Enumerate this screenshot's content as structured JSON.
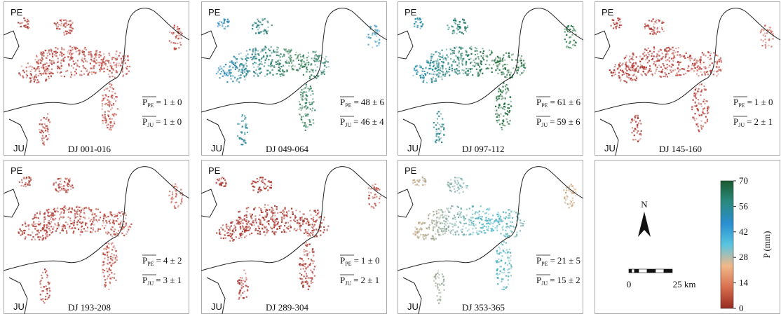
{
  "equals": "=",
  "panels": [
    {
      "period": "DJ 001-016",
      "regions": [
        "PE",
        "JU"
      ],
      "colors": [
        "#a8322a",
        "#c0524a",
        "#b84038"
      ],
      "stats": [
        {
          "symbol": "P",
          "sub": "PE",
          "value": "1 ± 0"
        },
        {
          "symbol": "P",
          "sub": "JU",
          "value": "1 ± 0"
        }
      ]
    },
    {
      "period": "DJ 049-064",
      "regions": [
        "PE",
        "JU"
      ],
      "colors": [
        "#2a8ed8",
        "#2f7a4a",
        "#58a8d8"
      ],
      "stats": [
        {
          "symbol": "P",
          "sub": "PE",
          "value": "48 ± 6"
        },
        {
          "symbol": "P",
          "sub": "JU",
          "value": "46 ± 4"
        }
      ]
    },
    {
      "period": "DJ 097-112",
      "regions": [
        "PE",
        "JU"
      ],
      "colors": [
        "#2a98c8",
        "#1f6a3a",
        "#2a7a48"
      ],
      "stats": [
        {
          "symbol": "P",
          "sub": "PE",
          "value": "61 ± 6"
        },
        {
          "symbol": "P",
          "sub": "JU",
          "value": "59 ± 6"
        }
      ]
    },
    {
      "period": "DJ 145-160",
      "regions": [
        "PE",
        "JU"
      ],
      "colors": [
        "#a8322a",
        "#b8403a",
        "#d0766a"
      ],
      "stats": [
        {
          "symbol": "P",
          "sub": "PE",
          "value": "1 ± 0"
        },
        {
          "symbol": "P",
          "sub": "JU",
          "value": "2 ± 1"
        }
      ]
    },
    {
      "period": "DJ 193-208",
      "regions": [
        "PE",
        "JU"
      ],
      "colors": [
        "#a8322a",
        "#b8463c",
        "#cc6e60"
      ],
      "stats": [
        {
          "symbol": "P",
          "sub": "PE",
          "value": "4 ± 2"
        },
        {
          "symbol": "P",
          "sub": "JU",
          "value": "3 ± 1"
        }
      ]
    },
    {
      "period": "DJ 289-304",
      "regions": [
        "PE",
        "JU"
      ],
      "colors": [
        "#a8322a",
        "#a8322a",
        "#c05a50"
      ],
      "stats": [
        {
          "symbol": "P",
          "sub": "PE",
          "value": "1 ± 0"
        },
        {
          "symbol": "P",
          "sub": "JU",
          "value": "2 ± 1"
        }
      ]
    },
    {
      "period": "DJ 353-365",
      "regions": [
        "PE",
        "JU"
      ],
      "colors": [
        "#e0a070",
        "#3cb4c8",
        "#e8a878"
      ],
      "stats": [
        {
          "symbol": "P",
          "sub": "PE",
          "value": "21 ± 5"
        },
        {
          "symbol": "P",
          "sub": "JU",
          "value": "15 ± 2"
        }
      ]
    }
  ],
  "legend": {
    "north": "N",
    "scale_labels": [
      "0",
      "25 km"
    ],
    "colorbar": {
      "label": "P (mm)",
      "lim": [
        0,
        70
      ],
      "ticks": [
        0,
        14,
        28,
        42,
        56,
        70
      ],
      "colors": [
        "#962a22",
        "#d8704e",
        "#f0b888",
        "#58c4e0",
        "#2a8ed0",
        "#2a8a80",
        "#1a5a30"
      ]
    }
  }
}
